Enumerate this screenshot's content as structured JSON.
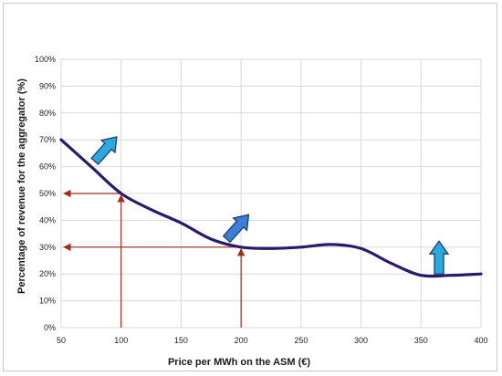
{
  "chart_data": {
    "type": "line",
    "xlabel": "Price per MWh on the ASM (€)",
    "ylabel": "Percentage of revenue for the aggregator (%)",
    "xlim": [
      50,
      400
    ],
    "ylim": [
      0,
      100
    ],
    "x_ticks": [
      "50",
      "100",
      "150",
      "200",
      "250",
      "300",
      "350",
      "400"
    ],
    "y_ticks": [
      "0%",
      "10%",
      "20%",
      "30%",
      "40%",
      "50%",
      "60%",
      "70%",
      "80%",
      "90%",
      "100%"
    ],
    "grid": true,
    "series": [
      {
        "x": [
          50,
          75,
          100,
          125,
          150,
          175,
          200,
          225,
          250,
          275,
          300,
          325,
          350,
          375,
          400
        ],
        "y": [
          70,
          60,
          50,
          44,
          39,
          33,
          30,
          29.5,
          30,
          31,
          29.5,
          24,
          19.5,
          19.5,
          20
        ]
      }
    ],
    "reference_lines": [
      {
        "x": 100,
        "y": 50
      },
      {
        "x": 200,
        "y": 30
      }
    ],
    "annotation_arrows": [
      {
        "x": 78,
        "y": 62,
        "direction": "up-right"
      },
      {
        "x": 188,
        "y": 33,
        "direction": "up-right"
      },
      {
        "x": 365,
        "y": 20,
        "direction": "up"
      }
    ],
    "colors": {
      "line": "#2b1a6b",
      "reference": "#a52a1a",
      "arrow_fill": "#29a9e0",
      "arrow_fill_blue": "#3b7fd6",
      "arrow_stroke": "#1f3d6b",
      "grid": "#d9d9d9"
    }
  }
}
